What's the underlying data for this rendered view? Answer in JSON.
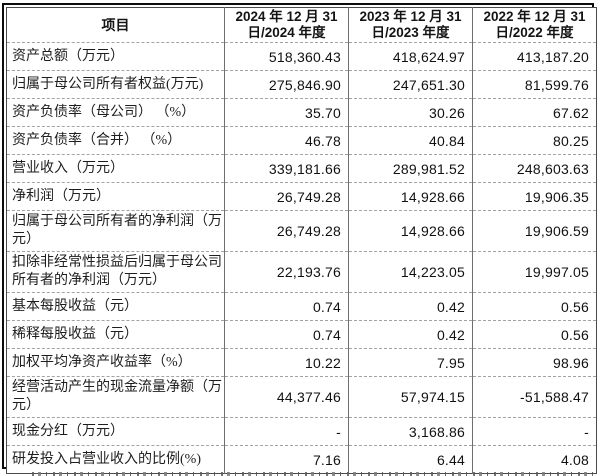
{
  "table": {
    "header": {
      "item": "项目",
      "periods": [
        {
          "line1": "2024 年 12 月 31",
          "line2": "日/2024 年度"
        },
        {
          "line1": "2023 年 12 月 31",
          "line2": "日/2023 年度"
        },
        {
          "line1": "2022 年 12 月 31",
          "line2": "日/2022 年度"
        }
      ]
    },
    "rows": [
      {
        "label": "资产总额（万元）",
        "tall": false,
        "values": [
          "518,360.43",
          "418,624.97",
          "413,187.20"
        ]
      },
      {
        "label": "归属于母公司所有者权益(万元)",
        "tall": false,
        "values": [
          "275,846.90",
          "247,651.30",
          "81,599.76"
        ]
      },
      {
        "label": "资产负债率（母公司） （%）",
        "tall": false,
        "values": [
          "35.70",
          "30.26",
          "67.62"
        ]
      },
      {
        "label": "资产负债率（合并） （%）",
        "tall": false,
        "values": [
          "46.78",
          "40.84",
          "80.25"
        ]
      },
      {
        "label": "营业收入（万元）",
        "tall": false,
        "values": [
          "339,181.66",
          "289,981.52",
          "248,603.63"
        ]
      },
      {
        "label": "净利润（万元）",
        "tall": false,
        "values": [
          "26,749.28",
          "14,928.66",
          "19,906.35"
        ]
      },
      {
        "label": "归属于母公司所有者的净利润（万元）",
        "tall": true,
        "values": [
          "26,749.28",
          "14,928.66",
          "19,906.59"
        ]
      },
      {
        "label": "扣除非经常性损益后归属于母公司所有者的净利润（万元）",
        "tall": true,
        "values": [
          "22,193.76",
          "14,223.05",
          "19,997.05"
        ]
      },
      {
        "label": "基本每股收益（元）",
        "tall": false,
        "values": [
          "0.74",
          "0.42",
          "0.56"
        ]
      },
      {
        "label": "稀释每股收益（元）",
        "tall": false,
        "values": [
          "0.74",
          "0.42",
          "0.56"
        ]
      },
      {
        "label": "加权平均净资产收益率（%）",
        "tall": false,
        "values": [
          "10.22",
          "7.95",
          "98.96"
        ]
      },
      {
        "label": "经营活动产生的现金流量净额（万元）",
        "tall": true,
        "values": [
          "44,377.46",
          "57,974.15",
          "-51,588.47"
        ]
      },
      {
        "label": "现金分红（万元）",
        "tall": false,
        "values": [
          "-",
          "3,168.86",
          "-"
        ]
      },
      {
        "label": "研发投入占营业收入的比例(%)",
        "tall": false,
        "values": [
          "7.16",
          "6.44",
          "4.08"
        ]
      }
    ]
  }
}
